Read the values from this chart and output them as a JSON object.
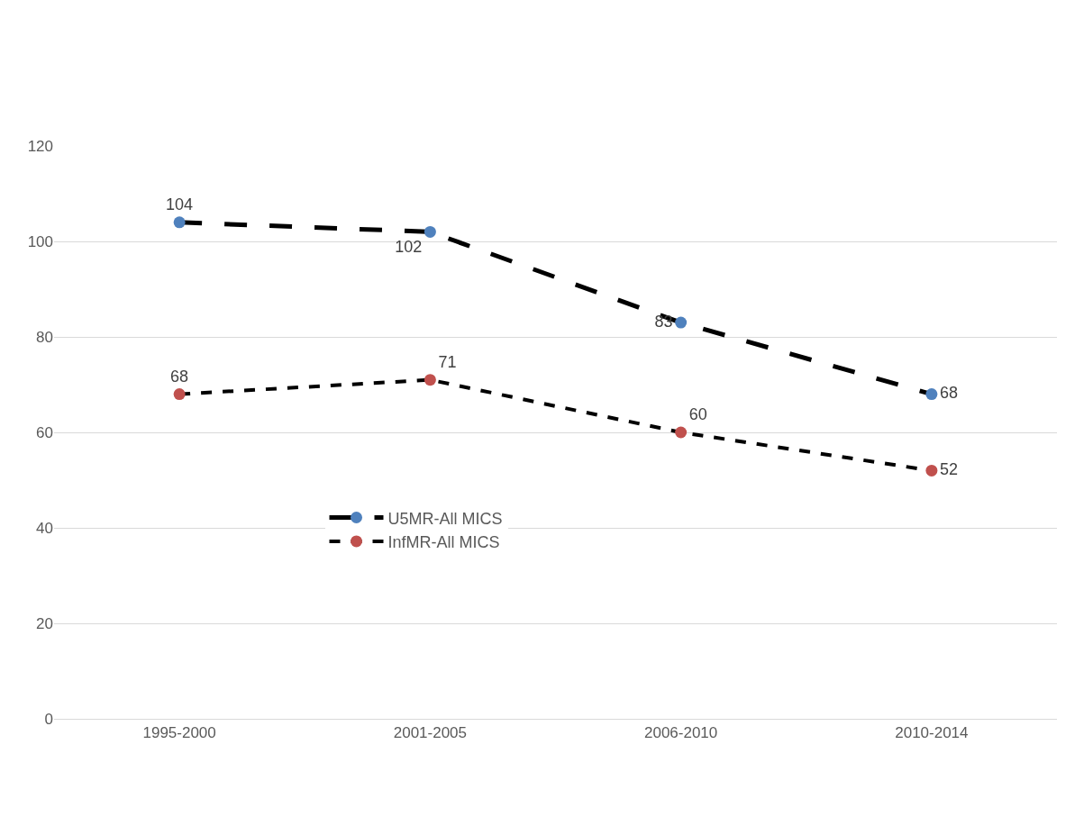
{
  "chart_data": {
    "type": "line",
    "categories": [
      "1995-2000",
      "2001-2005",
      "2006-2010",
      "2010-2014"
    ],
    "series": [
      {
        "name": "U5MR-All MICS",
        "color": "#000000",
        "colors": [
          "#4f81bd",
          "#4f81bd",
          "#4f81bd",
          "#4f81bd"
        ],
        "values": [
          104,
          102,
          83,
          68
        ],
        "line_style": "dashed"
      },
      {
        "name": "InfMR-All MICS",
        "color": "#000000",
        "colors": [
          "#c0504d",
          "#c0504d",
          "#c0504d",
          "#c0504d"
        ],
        "values": [
          68,
          71,
          60,
          52
        ],
        "line_style": "dashed"
      }
    ],
    "ylim": [
      0,
      120
    ],
    "yticks": [
      0,
      20,
      40,
      60,
      80,
      100,
      120
    ],
    "grid": "y",
    "legend": "center",
    "marker": "circle",
    "data_labels": true
  }
}
